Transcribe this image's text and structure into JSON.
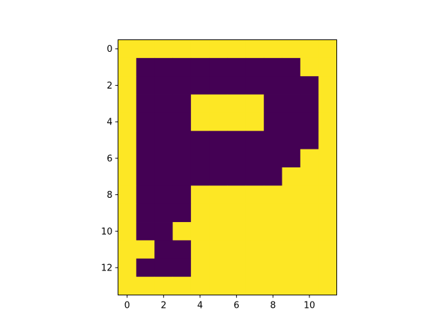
{
  "chart_data": {
    "type": "heatmap",
    "colors": {
      "low": "#440154",
      "high": "#fde725",
      "axis": "#000000",
      "background": "#ffffff"
    },
    "xlim": [
      -0.5,
      11.5
    ],
    "ylim": [
      13.5,
      -0.5
    ],
    "xticks": [
      0,
      2,
      4,
      6,
      8,
      10
    ],
    "yticks": [
      0,
      2,
      4,
      6,
      8,
      10,
      12
    ],
    "xtick_labels": [
      "0",
      "2",
      "4",
      "6",
      "8",
      "10"
    ],
    "ytick_labels": [
      "0",
      "2",
      "4",
      "6",
      "8",
      "10",
      "12"
    ],
    "grid": false,
    "matrix": [
      [
        1,
        1,
        1,
        1,
        1,
        1,
        1,
        1,
        1,
        1,
        1,
        1
      ],
      [
        1,
        0,
        0,
        0,
        0,
        0,
        0,
        0,
        0,
        0,
        1,
        1
      ],
      [
        1,
        0,
        0,
        0,
        0,
        0,
        0,
        0,
        0,
        0,
        0,
        1
      ],
      [
        1,
        0,
        0,
        0,
        1,
        1,
        1,
        1,
        0,
        0,
        0,
        1
      ],
      [
        1,
        0,
        0,
        0,
        1,
        1,
        1,
        1,
        0,
        0,
        0,
        1
      ],
      [
        1,
        0,
        0,
        0,
        0,
        0,
        0,
        0,
        0,
        0,
        0,
        1
      ],
      [
        1,
        0,
        0,
        0,
        0,
        0,
        0,
        0,
        0,
        0,
        1,
        1
      ],
      [
        1,
        0,
        0,
        0,
        0,
        0,
        0,
        0,
        0,
        1,
        1,
        1
      ],
      [
        1,
        0,
        0,
        0,
        1,
        1,
        1,
        1,
        1,
        1,
        1,
        1
      ],
      [
        1,
        0,
        0,
        0,
        1,
        1,
        1,
        1,
        1,
        1,
        1,
        1
      ],
      [
        1,
        0,
        0,
        1,
        1,
        1,
        1,
        1,
        1,
        1,
        1,
        1
      ],
      [
        1,
        1,
        0,
        0,
        1,
        1,
        1,
        1,
        1,
        1,
        1,
        1
      ],
      [
        1,
        0,
        0,
        0,
        1,
        1,
        1,
        1,
        1,
        1,
        1,
        1
      ],
      [
        1,
        1,
        1,
        1,
        1,
        1,
        1,
        1,
        1,
        1,
        1,
        1
      ]
    ]
  }
}
